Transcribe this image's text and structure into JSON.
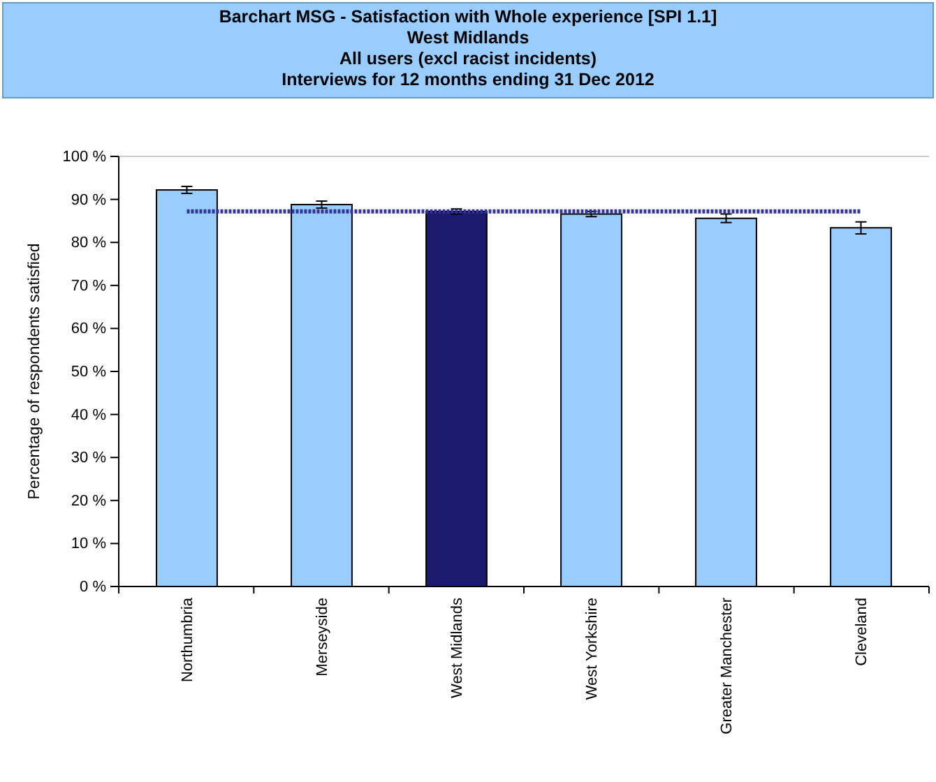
{
  "chart_data": {
    "type": "bar",
    "title": "Barchart MSG - Satisfaction with Whole experience [SPI 1.1]",
    "subtitle": "West Midlands\nAll users (excl racist incidents)\nInterviews for 12 months ending 31 Dec 2012",
    "ylabel": "Percentage of respondents satisfied",
    "categories": [
      "Northumbria",
      "Merseyside",
      "West Midlands",
      "West Yorkshire",
      "Greater Manchester",
      "Cleveland"
    ],
    "values": [
      92.2,
      88.8,
      87.2,
      86.6,
      85.6,
      83.4
    ],
    "errors": [
      0.8,
      0.8,
      0.6,
      0.6,
      1,
      1.4
    ],
    "colors": [
      "#99ccff",
      "#99ccff",
      "#1a1a6e",
      "#99ccff",
      "#99ccff",
      "#99ccff"
    ],
    "ylim": [
      0,
      100
    ],
    "yticks": [
      {
        "value": 0,
        "label": "0 %"
      },
      {
        "value": 10,
        "label": "10 %"
      },
      {
        "value": 20,
        "label": "20 %"
      },
      {
        "value": 30,
        "label": "30 %"
      },
      {
        "value": 40,
        "label": "40 %"
      },
      {
        "value": 50,
        "label": "50 %"
      },
      {
        "value": 60,
        "label": "60 %"
      },
      {
        "value": 70,
        "label": "70 %"
      },
      {
        "value": 80,
        "label": "80 %"
      },
      {
        "value": 90,
        "label": "90 %"
      },
      {
        "value": 100,
        "label": "100 %"
      }
    ],
    "ref_lines": [
      {
        "axis": "y",
        "value": 87.2,
        "color": "#333399",
        "line_style": "dotted"
      }
    ],
    "grid": false
  }
}
